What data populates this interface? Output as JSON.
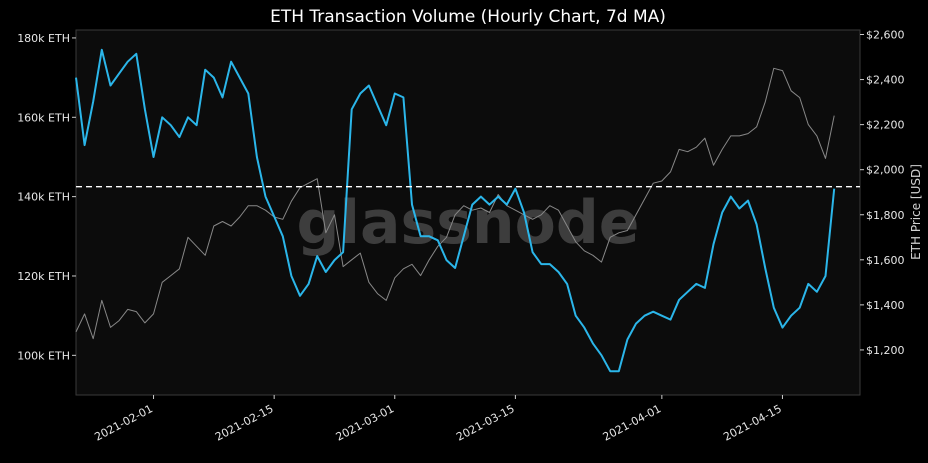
{
  "chart_data": {
    "type": "line",
    "title": "ETH Transaction Volume (Hourly Chart, 7d MA)",
    "watermark": "glassnode",
    "ylabel_right": "ETH Price [USD]",
    "xlim": [
      "2021-01-23",
      "2021-04-24"
    ],
    "ylim_left": [
      90000,
      182000
    ],
    "ylim_right": [
      1000,
      2620
    ],
    "left_ticks": [
      {
        "value": 100000,
        "label": "100k ETH"
      },
      {
        "value": 120000,
        "label": "120k ETH"
      },
      {
        "value": 140000,
        "label": "140k ETH"
      },
      {
        "value": 160000,
        "label": "160k ETH"
      },
      {
        "value": 180000,
        "label": "180k ETH"
      }
    ],
    "right_ticks": [
      {
        "value": 1200,
        "label": "$1,200"
      },
      {
        "value": 1400,
        "label": "$1,400"
      },
      {
        "value": 1600,
        "label": "$1,600"
      },
      {
        "value": 1800,
        "label": "$1,800"
      },
      {
        "value": 2000,
        "label": "$2,000"
      },
      {
        "value": 2200,
        "label": "$2,200"
      },
      {
        "value": 2400,
        "label": "$2,400"
      },
      {
        "value": 2600,
        "label": "$2,600"
      }
    ],
    "x_ticks": [
      {
        "value": "2021-02-01",
        "label": "2021-02-01"
      },
      {
        "value": "2021-02-15",
        "label": "2021-02-15"
      },
      {
        "value": "2021-03-01",
        "label": "2021-03-01"
      },
      {
        "value": "2021-03-15",
        "label": "2021-03-15"
      },
      {
        "value": "2021-04-01",
        "label": "2021-04-01"
      },
      {
        "value": "2021-04-15",
        "label": "2021-04-15"
      }
    ],
    "reference_line": {
      "axis": "left",
      "value": 142500,
      "style": "dashed",
      "color": "#ffffff"
    },
    "grid": false,
    "series": [
      {
        "axis": "left",
        "color": "#2bb6ea",
        "x": [
          "2021-01-23",
          "2021-01-24",
          "2021-01-25",
          "2021-01-26",
          "2021-01-27",
          "2021-01-28",
          "2021-01-29",
          "2021-01-30",
          "2021-01-31",
          "2021-02-01",
          "2021-02-02",
          "2021-02-03",
          "2021-02-04",
          "2021-02-05",
          "2021-02-06",
          "2021-02-07",
          "2021-02-08",
          "2021-02-09",
          "2021-02-10",
          "2021-02-11",
          "2021-02-12",
          "2021-02-13",
          "2021-02-14",
          "2021-02-15",
          "2021-02-16",
          "2021-02-17",
          "2021-02-18",
          "2021-02-19",
          "2021-02-20",
          "2021-02-21",
          "2021-02-22",
          "2021-02-23",
          "2021-02-24",
          "2021-02-25",
          "2021-02-26",
          "2021-02-27",
          "2021-02-28",
          "2021-03-01",
          "2021-03-02",
          "2021-03-03",
          "2021-03-04",
          "2021-03-05",
          "2021-03-06",
          "2021-03-07",
          "2021-03-08",
          "2021-03-09",
          "2021-03-10",
          "2021-03-11",
          "2021-03-12",
          "2021-03-13",
          "2021-03-14",
          "2021-03-15",
          "2021-03-16",
          "2021-03-17",
          "2021-03-18",
          "2021-03-19",
          "2021-03-20",
          "2021-03-21",
          "2021-03-22",
          "2021-03-23",
          "2021-03-24",
          "2021-03-25",
          "2021-03-26",
          "2021-03-27",
          "2021-03-28",
          "2021-03-29",
          "2021-03-30",
          "2021-03-31",
          "2021-04-01",
          "2021-04-02",
          "2021-04-03",
          "2021-04-04",
          "2021-04-05",
          "2021-04-06",
          "2021-04-07",
          "2021-04-08",
          "2021-04-09",
          "2021-04-10",
          "2021-04-11",
          "2021-04-12",
          "2021-04-13",
          "2021-04-14",
          "2021-04-15",
          "2021-04-16",
          "2021-04-17",
          "2021-04-18",
          "2021-04-19",
          "2021-04-20",
          "2021-04-21"
        ],
        "values": [
          170000,
          153000,
          164000,
          177000,
          168000,
          171000,
          174000,
          176000,
          162000,
          150000,
          160000,
          158000,
          155000,
          160000,
          158000,
          172000,
          170000,
          165000,
          174000,
          170000,
          166000,
          150000,
          140000,
          135000,
          130000,
          120000,
          115000,
          118000,
          125000,
          121000,
          124000,
          126000,
          162000,
          166000,
          168000,
          163000,
          158000,
          166000,
          165000,
          138000,
          130000,
          130000,
          129000,
          124000,
          122000,
          130000,
          138000,
          140000,
          138000,
          140000,
          138000,
          142000,
          136000,
          126000,
          123000,
          123000,
          121000,
          118000,
          110000,
          107000,
          103000,
          100000,
          96000,
          96000,
          104000,
          108000,
          110000,
          111000,
          110000,
          109000,
          114000,
          116000,
          118000,
          117000,
          128000,
          136000,
          140000,
          137000,
          139000,
          133000,
          122000,
          112000,
          107000,
          110000,
          112000,
          118000,
          116000,
          120000,
          142000
        ]
      },
      {
        "axis": "right",
        "color": "#888888",
        "x": [
          "2021-01-23",
          "2021-01-24",
          "2021-01-25",
          "2021-01-26",
          "2021-01-27",
          "2021-01-28",
          "2021-01-29",
          "2021-01-30",
          "2021-01-31",
          "2021-02-01",
          "2021-02-02",
          "2021-02-03",
          "2021-02-04",
          "2021-02-05",
          "2021-02-06",
          "2021-02-07",
          "2021-02-08",
          "2021-02-09",
          "2021-02-10",
          "2021-02-11",
          "2021-02-12",
          "2021-02-13",
          "2021-02-14",
          "2021-02-15",
          "2021-02-16",
          "2021-02-17",
          "2021-02-18",
          "2021-02-19",
          "2021-02-20",
          "2021-02-21",
          "2021-02-22",
          "2021-02-23",
          "2021-02-24",
          "2021-02-25",
          "2021-02-26",
          "2021-02-27",
          "2021-02-28",
          "2021-03-01",
          "2021-03-02",
          "2021-03-03",
          "2021-03-04",
          "2021-03-05",
          "2021-03-06",
          "2021-03-07",
          "2021-03-08",
          "2021-03-09",
          "2021-03-10",
          "2021-03-11",
          "2021-03-12",
          "2021-03-13",
          "2021-03-14",
          "2021-03-15",
          "2021-03-16",
          "2021-03-17",
          "2021-03-18",
          "2021-03-19",
          "2021-03-20",
          "2021-03-21",
          "2021-03-22",
          "2021-03-23",
          "2021-03-24",
          "2021-03-25",
          "2021-03-26",
          "2021-03-27",
          "2021-03-28",
          "2021-03-29",
          "2021-03-30",
          "2021-03-31",
          "2021-04-01",
          "2021-04-02",
          "2021-04-03",
          "2021-04-04",
          "2021-04-05",
          "2021-04-06",
          "2021-04-07",
          "2021-04-08",
          "2021-04-09",
          "2021-04-10",
          "2021-04-11",
          "2021-04-12",
          "2021-04-13",
          "2021-04-14",
          "2021-04-15",
          "2021-04-16",
          "2021-04-17",
          "2021-04-18",
          "2021-04-19",
          "2021-04-20",
          "2021-04-21"
        ],
        "values": [
          1280,
          1360,
          1250,
          1420,
          1300,
          1330,
          1380,
          1370,
          1320,
          1360,
          1500,
          1530,
          1560,
          1700,
          1660,
          1620,
          1750,
          1770,
          1750,
          1790,
          1840,
          1840,
          1820,
          1790,
          1780,
          1860,
          1920,
          1940,
          1960,
          1720,
          1800,
          1570,
          1600,
          1630,
          1500,
          1450,
          1420,
          1520,
          1560,
          1580,
          1530,
          1600,
          1660,
          1700,
          1800,
          1840,
          1820,
          1830,
          1810,
          1890,
          1840,
          1820,
          1800,
          1780,
          1800,
          1840,
          1820,
          1750,
          1680,
          1640,
          1620,
          1590,
          1700,
          1720,
          1730,
          1800,
          1870,
          1940,
          1950,
          1990,
          2090,
          2080,
          2100,
          2140,
          2020,
          2090,
          2150,
          2150,
          2160,
          2190,
          2300,
          2450,
          2440,
          2350,
          2320,
          2200,
          2150,
          2050,
          2240
        ]
      }
    ]
  }
}
